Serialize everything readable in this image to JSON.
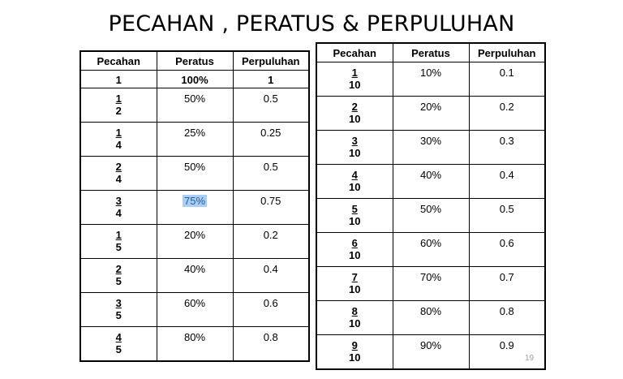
{
  "title": "PECAHAN  , PERATUS & PERPULUHAN",
  "headers": {
    "pecahan": "Pecahan",
    "peratus": "Peratus",
    "perpuluhan": "Perpuluhan"
  },
  "left_table": {
    "first_row": {
      "pecahan": "1",
      "peratus": "100%",
      "perpuluhan": "1"
    },
    "rows": [
      {
        "num": "1",
        "den": "2",
        "peratus": "50%",
        "perpuluhan": "0.5"
      },
      {
        "num": "1",
        "den": "4",
        "peratus": "25%",
        "perpuluhan": "0.25"
      },
      {
        "num": "2",
        "den": "4",
        "peratus": "50%",
        "perpuluhan": "0.5"
      },
      {
        "num": "3",
        "den": "4",
        "peratus": "75%",
        "perpuluhan": "0.75"
      },
      {
        "num": "1",
        "den": "5",
        "peratus": "20%",
        "perpuluhan": "0.2"
      },
      {
        "num": "2",
        "den": "5",
        "peratus": "40%",
        "perpuluhan": "0.4"
      },
      {
        "num": "3",
        "den": "5",
        "peratus": "60%",
        "perpuluhan": "0.6"
      },
      {
        "num": "4",
        "den": "5",
        "peratus": "80%",
        "perpuluhan": "0.8"
      }
    ]
  },
  "right_table": {
    "rows": [
      {
        "num": "1",
        "den": "10",
        "peratus": "10%",
        "perpuluhan": "0.1"
      },
      {
        "num": "2",
        "den": "10",
        "peratus": "20%",
        "perpuluhan": "0.2"
      },
      {
        "num": "3",
        "den": "10",
        "peratus": "30%",
        "perpuluhan": "0.3"
      },
      {
        "num": "4",
        "den": "10",
        "peratus": "40%",
        "perpuluhan": "0.4"
      },
      {
        "num": "5",
        "den": "10",
        "peratus": "50%",
        "perpuluhan": "0.5"
      },
      {
        "num": "6",
        "den": "10",
        "peratus": "60%",
        "perpuluhan": "0.6"
      },
      {
        "num": "7",
        "den": "10",
        "peratus": "70%",
        "perpuluhan": "0.7"
      },
      {
        "num": "8",
        "den": "10",
        "peratus": "80%",
        "perpuluhan": "0.8"
      },
      {
        "num": "9",
        "den": "10",
        "peratus": "90%",
        "perpuluhan": "0.9"
      }
    ]
  },
  "highlight_color": "#a9cff5",
  "page_number": "19"
}
